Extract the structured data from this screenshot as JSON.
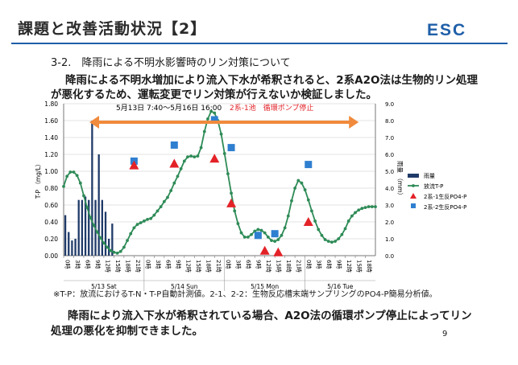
{
  "slide": {
    "title": "課題と改善活動状況【2】",
    "logo": "ESC",
    "section": "3-2.　降雨による不明水影響時のリン対策について",
    "body_lines": [
      "降雨による不明水増加により流入下水が希釈されると、2系A2O法は生物的リン処理",
      "が悪化するため、運転変更でリン対策が行えないか検証しました。"
    ],
    "footnote": "※T-P：放流におけるT-N・T-P自動計測値。2-1、2-2：生物反応槽末端サンプリングのPO4-P簡易分析値。",
    "conclusion_lines": [
      "降雨により流入下水が希釈されている場合、A2O法の循環ポンプ停止によってリン",
      "処理の悪化を抑制できました。"
    ],
    "page_number": "9"
  },
  "chart_data": {
    "type": "bar+line+scatter",
    "annotation_period": "5月13日 7:40～5月16日 16:00",
    "annotation_label": "2系-1池　循環ポンプ停止",
    "annotation_range_hours": [
      7.7,
      88
    ],
    "ylabel_left": "T-P （mg/L）",
    "ylabel_right": "雨量 （mm）",
    "ylim_left": [
      0,
      1.8
    ],
    "ylim_right": [
      0,
      9
    ],
    "yticks_left": [
      "0.00",
      "0.20",
      "0.40",
      "0.60",
      "0.80",
      "1.00",
      "1.20",
      "1.40",
      "1.60",
      "1.80"
    ],
    "yticks_right": [
      "0.0",
      "1.0",
      "2.0",
      "3.0",
      "4.0",
      "5.0",
      "6.0",
      "7.0",
      "8.0",
      "9.0"
    ],
    "xlim_hours": [
      0,
      93
    ],
    "xticks_hours": [
      0,
      3,
      6,
      9,
      12,
      15,
      18,
      21,
      24,
      27,
      30,
      33,
      36,
      39,
      42,
      45,
      48,
      51,
      54,
      57,
      60,
      63,
      66,
      69,
      72,
      75,
      78,
      81,
      84,
      87,
      90
    ],
    "xtick_labels": [
      "0時",
      "3時",
      "6時",
      "9時",
      "12時",
      "15時",
      "18時",
      "21時",
      "0時",
      "3時",
      "6時",
      "9時",
      "12時",
      "15時",
      "18時",
      "21時",
      "0時",
      "3時",
      "6時",
      "9時",
      "12時",
      "15時",
      "18時",
      "21時",
      "0時",
      "3時",
      "6時",
      "9時",
      "12時",
      "15時",
      "18時"
    ],
    "day_labels": [
      "5/13 Sat",
      "5/14 Sun",
      "5/15 Mon",
      "5/16 Tue"
    ],
    "day_boundaries_hours": [
      24,
      48,
      72
    ],
    "legend": [
      "雨量",
      "放流T-P",
      "2系-1生反PO4-P",
      "2系-2生反PO4-P"
    ],
    "legend_position": "right",
    "rainfall": {
      "name": "雨量",
      "color": "#1f3a68",
      "x": [
        0,
        1,
        2,
        3,
        4,
        5,
        6,
        7,
        8,
        9,
        10,
        11,
        12,
        13,
        14
      ],
      "values": [
        2.4,
        1.4,
        0.9,
        1.0,
        3.3,
        3.3,
        3.5,
        3.3,
        8.0,
        3.3,
        6.0,
        3.3,
        2.6,
        1.0,
        1.9
      ]
    },
    "tp": {
      "name": "放流T-P",
      "color": "#2e8b57",
      "x": [
        0,
        1,
        2,
        3,
        4,
        5,
        6,
        7,
        8,
        9,
        10,
        11,
        12,
        13,
        14,
        15,
        16,
        17,
        18,
        19,
        20,
        21,
        22,
        23,
        24,
        25,
        26,
        27,
        28,
        29,
        30,
        31,
        32,
        33,
        34,
        35,
        36,
        37,
        38,
        39,
        40,
        41,
        42,
        43,
        44,
        45,
        46,
        47,
        48,
        49,
        50,
        51,
        52,
        53,
        54,
        55,
        56,
        57,
        58,
        59,
        60,
        61,
        62,
        63,
        64,
        65,
        66,
        67,
        68,
        69,
        70,
        71,
        72,
        73,
        74,
        75,
        76,
        77,
        78,
        79,
        80,
        81,
        82,
        83,
        84,
        85,
        86,
        87,
        88,
        89,
        90,
        91,
        92,
        93
      ],
      "values": [
        0.82,
        0.94,
        0.99,
        0.99,
        0.95,
        0.86,
        0.71,
        0.57,
        0.45,
        0.36,
        0.28,
        0.21,
        0.15,
        0.1,
        0.06,
        0.04,
        0.03,
        0.05,
        0.1,
        0.18,
        0.26,
        0.33,
        0.37,
        0.39,
        0.41,
        0.43,
        0.44,
        0.48,
        0.53,
        0.58,
        0.64,
        0.69,
        0.77,
        0.86,
        0.94,
        1.03,
        1.12,
        1.17,
        1.18,
        1.17,
        1.18,
        1.28,
        1.47,
        1.62,
        1.71,
        1.69,
        1.6,
        1.44,
        1.21,
        0.97,
        0.74,
        0.53,
        0.38,
        0.27,
        0.22,
        0.22,
        0.25,
        0.29,
        0.31,
        0.3,
        0.27,
        0.22,
        0.18,
        0.17,
        0.19,
        0.24,
        0.33,
        0.47,
        0.65,
        0.8,
        0.89,
        0.86,
        0.78,
        0.66,
        0.53,
        0.41,
        0.31,
        0.24,
        0.19,
        0.17,
        0.16,
        0.17,
        0.2,
        0.25,
        0.32,
        0.41,
        0.47,
        0.51,
        0.54,
        0.56,
        0.57,
        0.58,
        0.58,
        0.58
      ]
    },
    "po4_2_1": {
      "name": "2系-1生反PO4-P",
      "color": "#e32228",
      "x": [
        21,
        33,
        45,
        50,
        60,
        64,
        73
      ],
      "values": [
        1.07,
        1.09,
        1.15,
        0.62,
        0.06,
        0.04,
        0.4
      ]
    },
    "po4_2_2": {
      "name": "2系-2生反PO4-P",
      "color": "#2f7fd0",
      "x": [
        21,
        33,
        45,
        50,
        58,
        63,
        73
      ],
      "values": [
        1.12,
        1.31,
        1.61,
        1.28,
        0.24,
        0.26,
        1.08
      ]
    }
  }
}
